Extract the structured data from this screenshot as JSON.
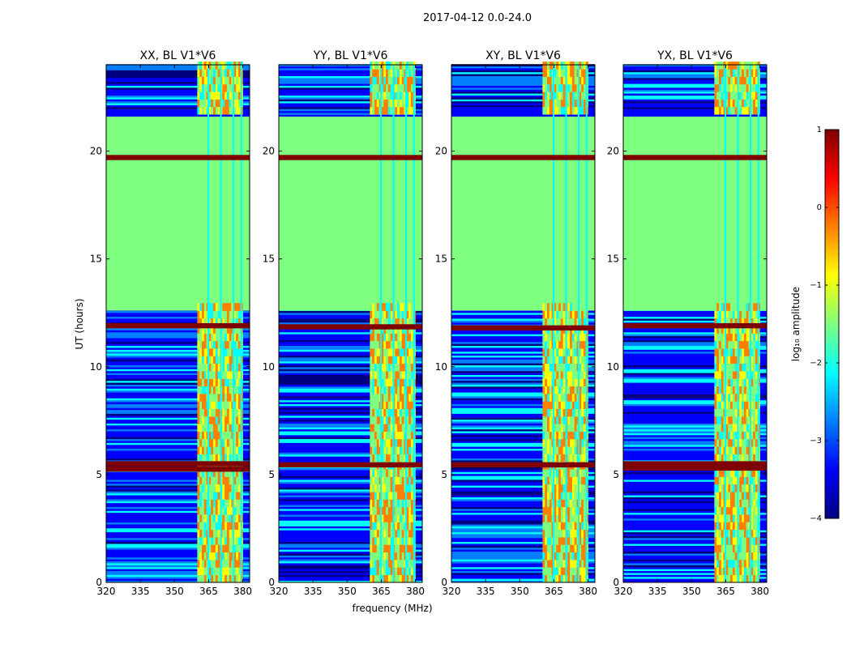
{
  "figure": {
    "suptitle": "2017-04-12 0.0-24.0",
    "xlabel": "frequency (MHz)",
    "ylabel": "UT (hours)",
    "colormap": [
      "#00007f",
      "#0000ff",
      "#007fff",
      "#00ffff",
      "#7fff7f",
      "#ffff00",
      "#ff7f00",
      "#ff0000",
      "#7f0000"
    ]
  },
  "chart_data": {
    "type": "heatmap",
    "panels": [
      {
        "title": "XX, BL V1*V6",
        "strong_bands": [
          5.25,
          5.5,
          11.9,
          19.7
        ]
      },
      {
        "title": "YY, BL V1*V6",
        "strong_bands": [
          5.45,
          11.85,
          19.7
        ]
      },
      {
        "title": "XY, BL V1*V6",
        "strong_bands": [
          5.45,
          11.8,
          19.7
        ]
      },
      {
        "title": "YX, BL V1*V6",
        "strong_bands": [
          5.3,
          5.5,
          11.9,
          19.7
        ]
      }
    ],
    "x_range": [
      320,
      383
    ],
    "x_ticks": [
      320,
      335,
      350,
      365,
      380
    ],
    "y_range": [
      0,
      24
    ],
    "y_ticks": [
      0,
      5,
      10,
      15,
      20
    ],
    "rfi_band_mhz": [
      360,
      380
    ],
    "flagged_ut_range": [
      12.6,
      21.6
    ],
    "colorbar": {
      "label": "log₁₀ amplitude",
      "range": [
        -4,
        1
      ],
      "ticks": [
        1,
        0,
        -1,
        -2,
        -3,
        -4
      ]
    }
  }
}
